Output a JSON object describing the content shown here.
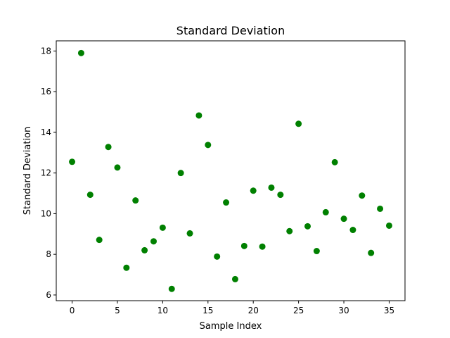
{
  "chart_data": {
    "type": "scatter",
    "title": "Standard Deviation",
    "xlabel": "Sample Index",
    "ylabel": "Standard Deviation",
    "xlim": [
      -1.75,
      36.75
    ],
    "ylim": [
      5.72,
      18.5
    ],
    "xticks": [
      0,
      5,
      10,
      15,
      20,
      25,
      30,
      35
    ],
    "yticks": [
      6,
      8,
      10,
      12,
      14,
      16,
      18
    ],
    "grid": false,
    "marker_color": "#008000",
    "x": [
      0,
      1,
      2,
      3,
      4,
      5,
      6,
      7,
      8,
      9,
      10,
      11,
      12,
      13,
      14,
      15,
      16,
      17,
      18,
      19,
      20,
      21,
      22,
      23,
      24,
      25,
      26,
      27,
      28,
      29,
      30,
      31,
      32,
      33,
      34,
      35
    ],
    "y": [
      12.55,
      17.9,
      10.93,
      8.71,
      13.28,
      12.27,
      7.34,
      10.65,
      8.2,
      8.64,
      9.31,
      6.3,
      12.0,
      9.03,
      14.83,
      13.38,
      7.89,
      10.55,
      6.78,
      8.41,
      11.13,
      8.38,
      11.28,
      10.93,
      9.14,
      14.42,
      9.38,
      8.16,
      10.07,
      12.53,
      9.75,
      9.2,
      10.89,
      8.07,
      10.24,
      9.41
    ]
  }
}
